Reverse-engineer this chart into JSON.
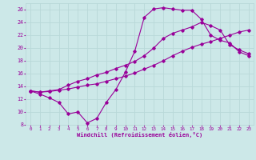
{
  "xlabel": "Windchill (Refroidissement éolien,°C)",
  "bg_color": "#cce8e8",
  "line_color": "#990099",
  "grid_color": "#b8d8d8",
  "xlim": [
    -0.5,
    23.5
  ],
  "ylim": [
    8,
    27
  ],
  "xticks": [
    0,
    1,
    2,
    3,
    4,
    5,
    6,
    7,
    8,
    9,
    10,
    11,
    12,
    13,
    14,
    15,
    16,
    17,
    18,
    19,
    20,
    21,
    22,
    23
  ],
  "yticks": [
    8,
    10,
    12,
    14,
    16,
    18,
    20,
    22,
    24,
    26
  ],
  "line1_x": [
    0,
    1,
    2,
    3,
    4,
    5,
    6,
    7,
    8,
    9,
    10,
    11,
    12,
    13,
    14,
    15,
    16,
    17,
    18,
    19,
    20,
    21,
    22,
    23
  ],
  "line1_y": [
    13.3,
    12.8,
    12.2,
    11.5,
    9.7,
    10.0,
    8.3,
    9.0,
    11.5,
    13.5,
    16.2,
    19.5,
    24.8,
    26.1,
    26.3,
    26.1,
    25.9,
    25.9,
    24.5,
    22.0,
    21.2,
    20.8,
    19.4,
    18.8
  ],
  "line2_x": [
    0,
    1,
    2,
    3,
    4,
    5,
    6,
    7,
    8,
    9,
    10,
    11,
    12,
    13,
    14,
    15,
    16,
    17,
    18,
    19,
    20,
    21,
    22,
    23
  ],
  "line2_y": [
    13.3,
    13.1,
    13.2,
    13.4,
    13.6,
    13.9,
    14.2,
    14.4,
    14.8,
    15.2,
    15.6,
    16.1,
    16.7,
    17.3,
    18.0,
    18.8,
    19.5,
    20.1,
    20.6,
    21.0,
    21.5,
    22.0,
    22.5,
    22.8
  ],
  "line3_x": [
    0,
    1,
    2,
    3,
    4,
    5,
    6,
    7,
    8,
    9,
    10,
    11,
    12,
    13,
    14,
    15,
    16,
    17,
    18,
    19,
    20,
    21,
    22,
    23
  ],
  "line3_y": [
    13.3,
    13.1,
    13.3,
    13.5,
    14.2,
    14.8,
    15.2,
    15.8,
    16.2,
    16.8,
    17.3,
    17.9,
    18.8,
    20.0,
    21.5,
    22.3,
    22.8,
    23.3,
    24.0,
    23.5,
    22.8,
    20.5,
    19.7,
    19.1
  ]
}
